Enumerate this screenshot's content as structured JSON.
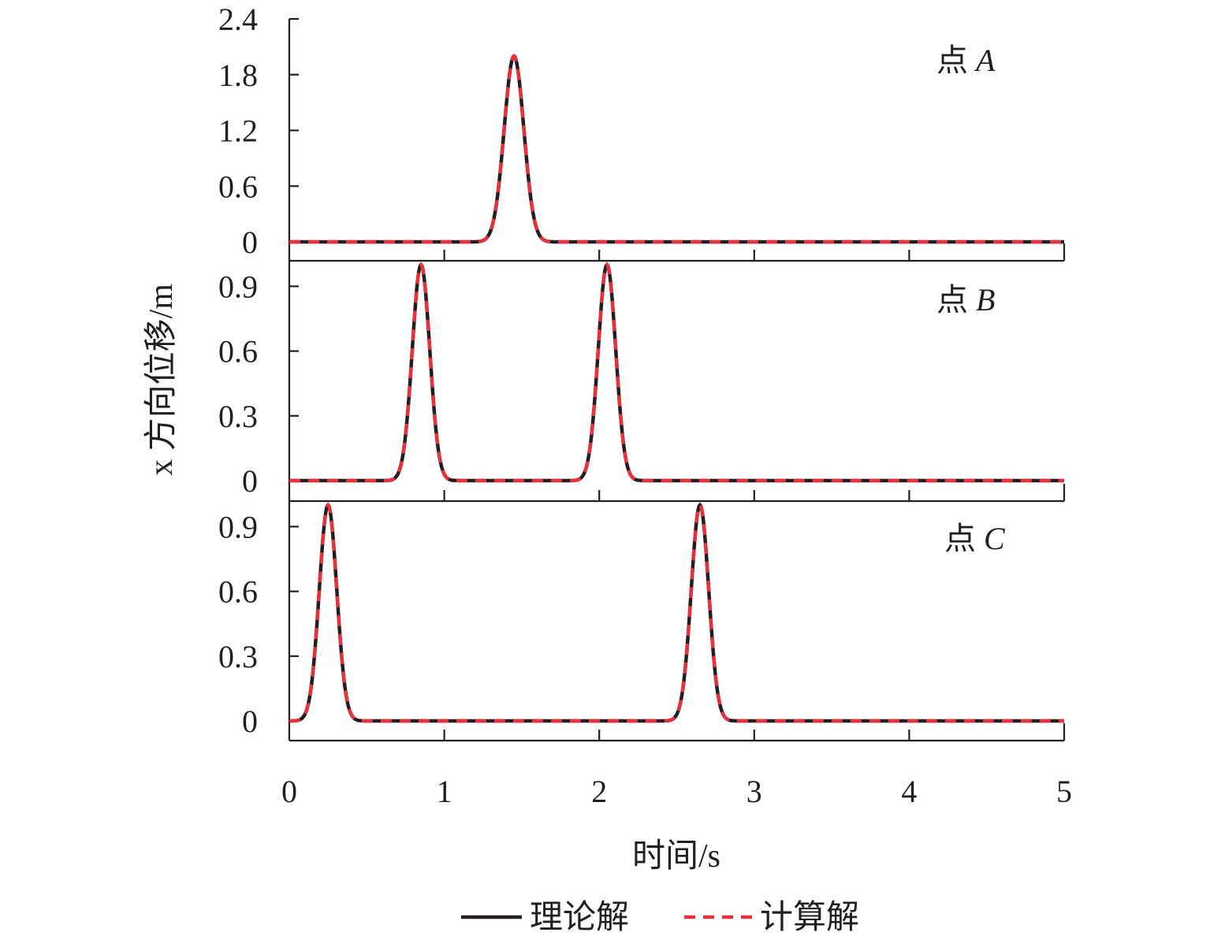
{
  "chart_data": {
    "type": "line",
    "xlabel": "时间/s",
    "ylabel": "x 方向位移/m",
    "xlim": [
      0,
      5
    ],
    "xticks": [
      "0",
      "1",
      "2",
      "3",
      "4",
      "5"
    ],
    "legend": {
      "placement": "bottom-center",
      "entries": [
        {
          "label": "理论解",
          "color": "#231f20",
          "style": "solid"
        },
        {
          "label": "计算解",
          "color": "#e8313b",
          "style": "dashed"
        }
      ]
    },
    "panels": [
      {
        "label_prefix": "点 ",
        "label_var": "A",
        "ylim": [
          0,
          2.4
        ],
        "yticks": [
          "0",
          "0.6",
          "1.2",
          "1.8",
          "2.4"
        ],
        "pulses": [
          {
            "center": 1.45,
            "peak": 2.0,
            "width": 0.09
          }
        ]
      },
      {
        "label_prefix": "点 ",
        "label_var": "B",
        "ylim": [
          0,
          1.0
        ],
        "yticks": [
          "0",
          "0.3",
          "0.6",
          "0.9"
        ],
        "pulses": [
          {
            "center": 0.85,
            "peak": 1.0,
            "width": 0.08
          },
          {
            "center": 2.05,
            "peak": 1.0,
            "width": 0.08
          }
        ]
      },
      {
        "label_prefix": "点 ",
        "label_var": "C",
        "ylim": [
          0,
          1.0
        ],
        "yticks": [
          "0",
          "0.3",
          "0.6",
          "0.9"
        ],
        "pulses": [
          {
            "center": 0.25,
            "peak": 1.0,
            "width": 0.08
          },
          {
            "center": 2.65,
            "peak": 1.0,
            "width": 0.08
          }
        ]
      }
    ],
    "series": [
      {
        "name": "理论解",
        "color": "#231f20"
      },
      {
        "name": "计算解",
        "color": "#e8313b"
      }
    ]
  }
}
